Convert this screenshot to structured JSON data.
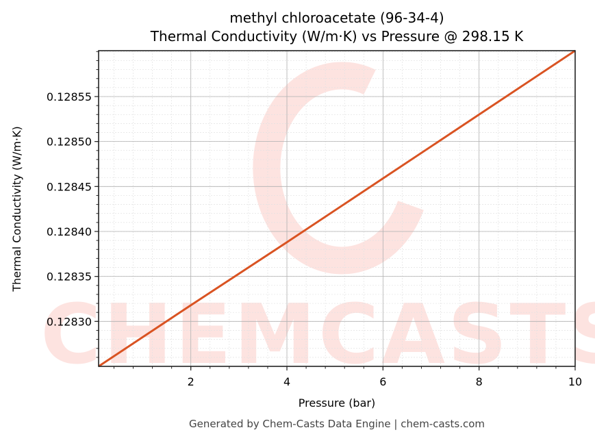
{
  "chart_data": {
    "type": "line",
    "title": "methyl chloroacetate (96-34-4)",
    "subtitle": "Thermal Conductivity (W/m·K) vs Pressure @ 298.15 K",
    "xlabel": "Pressure (bar)",
    "ylabel": "Thermal Conductivity (W/m·K)",
    "xlim": [
      0.08,
      10
    ],
    "ylim": [
      0.12825,
      0.128601
    ],
    "x_ticks": [
      2,
      4,
      6,
      8,
      10
    ],
    "y_ticks": [
      0.1283,
      0.12835,
      0.1284,
      0.12845,
      0.1285,
      0.12855
    ],
    "x_tick_labels": [
      "2",
      "4",
      "6",
      "8",
      "10"
    ],
    "y_tick_labels": [
      "0.12830",
      "0.12835",
      "0.12840",
      "0.12845",
      "0.12850",
      "0.12855"
    ],
    "grid": true,
    "legend": null,
    "series": [
      {
        "name": "Thermal Conductivity",
        "color": "#d95322",
        "x": [
          0.08,
          2,
          4,
          6,
          8,
          10
        ],
        "y": [
          0.12825,
          0.128318,
          0.128388,
          0.128459,
          0.12853,
          0.128601
        ]
      }
    ],
    "watermark": "CHEMCASTS",
    "footer": "Generated by Chem-Casts Data Engine | chem-casts.com"
  },
  "colors": {
    "line": "#d95322",
    "watermark": "#fde3e0",
    "grid_major": "#b0b0b0",
    "grid_minor": "#e2e2e2",
    "footer_text": "#444444"
  }
}
